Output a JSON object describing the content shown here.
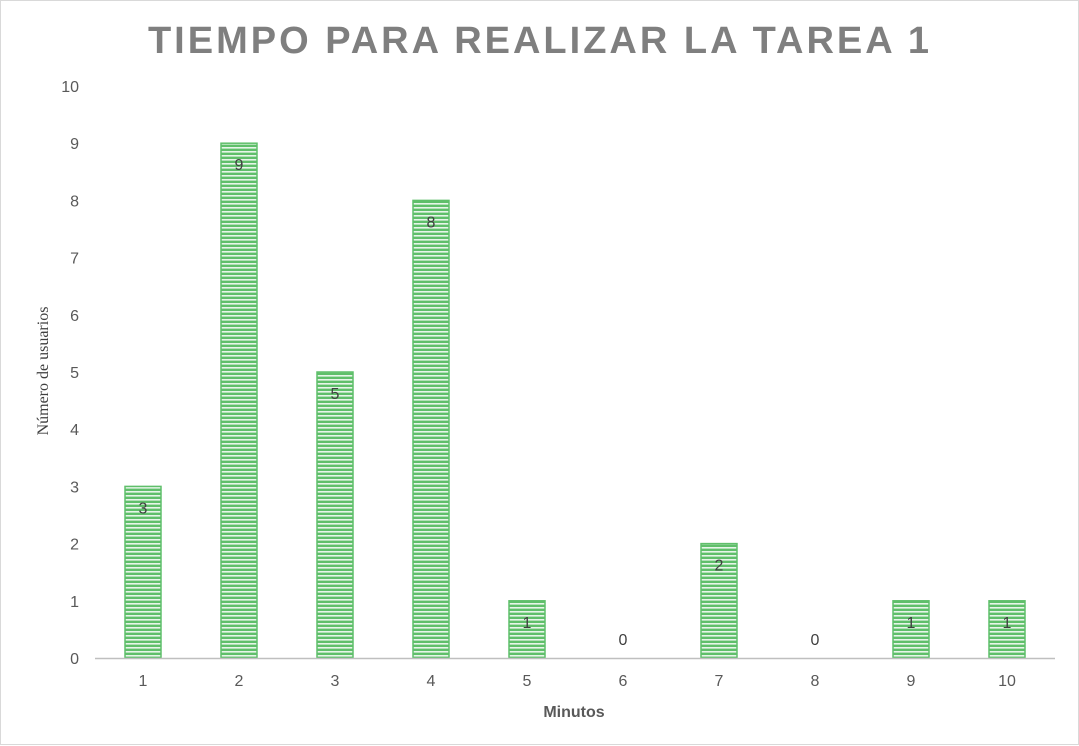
{
  "chart_data": {
    "type": "bar",
    "title": "TIEMPO PARA REALIZAR LA TAREA 1",
    "xlabel": "Minutos",
    "ylabel": "Número de usuarios",
    "categories": [
      "1",
      "2",
      "3",
      "4",
      "5",
      "6",
      "7",
      "8",
      "9",
      "10"
    ],
    "values": [
      3,
      9,
      5,
      8,
      1,
      0,
      2,
      0,
      1,
      1
    ],
    "ylim": [
      0,
      10
    ],
    "yticks": [
      "0",
      "1",
      "2",
      "3",
      "4",
      "5",
      "6",
      "7",
      "8",
      "9",
      "10"
    ],
    "grid": false,
    "legend": "none",
    "bar_color": "#5fbf6a",
    "bar_stripe_color": "#ffffff",
    "axis_color": "#bfbfbf"
  }
}
